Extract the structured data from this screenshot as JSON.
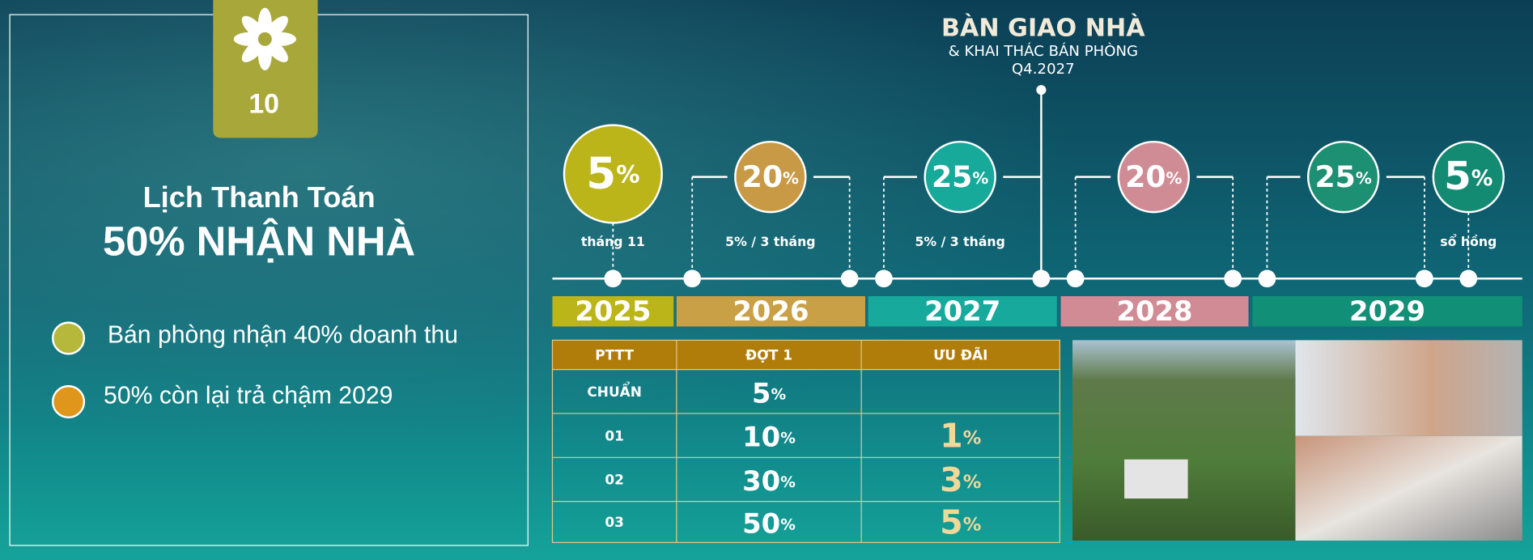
{
  "badge": {
    "number": "10"
  },
  "left": {
    "title_line1": "Lịch Thanh Toán",
    "title_line2": "50% NHẬN NHÀ",
    "bullets": [
      "Bán phòng nhận 40% doanh thu",
      "50% còn lại trả chậm 2029"
    ]
  },
  "handover": {
    "title": "BÀN GIAO NHÀ",
    "subtitle": "& KHAI THÁC BÁN PHÒNG",
    "date": "Q4.2027"
  },
  "timeline": {
    "milestones": [
      {
        "value": "5",
        "unit": "%",
        "caption": "tháng 11"
      },
      {
        "value": "20",
        "unit": "%",
        "caption": "5% / 3 tháng"
      },
      {
        "value": "25",
        "unit": "%",
        "caption": "5% / 3 tháng"
      },
      {
        "value": "20",
        "unit": "%"
      },
      {
        "value": "25",
        "unit": "%"
      },
      {
        "value": "5",
        "unit": "%",
        "caption": "sổ hồng"
      }
    ],
    "years": [
      "2025",
      "2026",
      "2027",
      "2028",
      "2029"
    ]
  },
  "table": {
    "headers": [
      "PTTT",
      "ĐỢT 1",
      "ƯU ĐÃI"
    ],
    "rows": [
      {
        "label": "CHUẨN",
        "dot1": {
          "value": "5",
          "unit": "%"
        }
      },
      {
        "label": "01",
        "dot1": {
          "value": "10",
          "unit": "%"
        },
        "offer": {
          "value": "1",
          "unit": "%"
        }
      },
      {
        "label": "02",
        "dot1": {
          "value": "30",
          "unit": "%"
        },
        "offer": {
          "value": "3",
          "unit": "%"
        }
      },
      {
        "label": "03",
        "dot1": {
          "value": "50",
          "unit": "%"
        },
        "offer": {
          "value": "5",
          "unit": "%"
        }
      }
    ]
  }
}
